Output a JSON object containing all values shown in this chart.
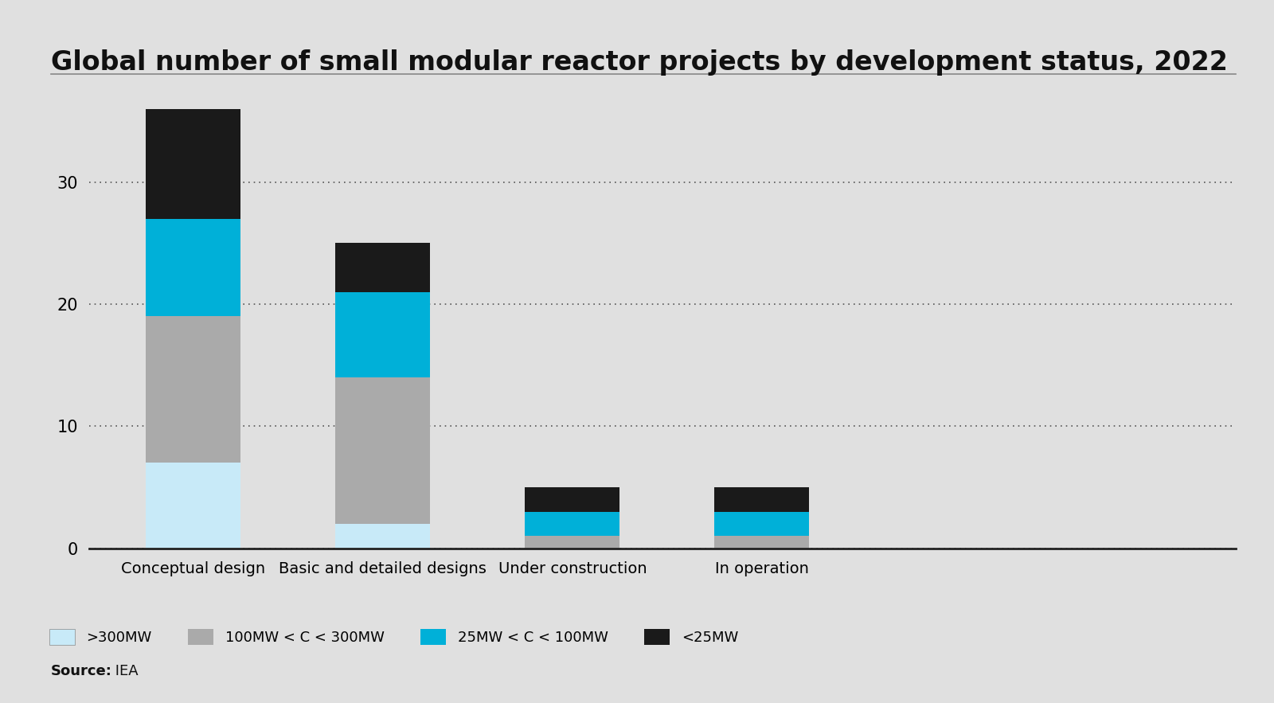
{
  "title": "Global number of small modular reactor projects by development status, 2022",
  "categories": [
    "Conceptual design",
    "Basic and detailed designs",
    "Under construction",
    "In operation"
  ],
  "series": {
    ">300MW": [
      7,
      2,
      0,
      0
    ],
    "100MW < C < 300MW": [
      12,
      12,
      1,
      1
    ],
    "25MW < C < 100MW": [
      8,
      7,
      2,
      2
    ],
    "<25MW": [
      9,
      4,
      2,
      2
    ]
  },
  "colors": {
    ">300MW": "#c8eaf8",
    "100MW < C < 300MW": "#aaaaaa",
    "25MW < C < 100MW": "#00b0d8",
    "<25MW": "#1a1a1a"
  },
  "legend_labels": [
    ">300MW",
    "100MW < C < 300MW",
    "25MW < C < 100MW",
    "<25MW"
  ],
  "yticks": [
    0,
    10,
    20,
    30
  ],
  "ylim": [
    0,
    38
  ],
  "background_color": "#e0e0e0",
  "source_bold": "Source:",
  "source_rest": " IEA",
  "bar_width": 0.5,
  "title_fontsize": 24,
  "axis_fontsize": 14,
  "legend_fontsize": 13,
  "source_fontsize": 13,
  "tick_fontsize": 15
}
